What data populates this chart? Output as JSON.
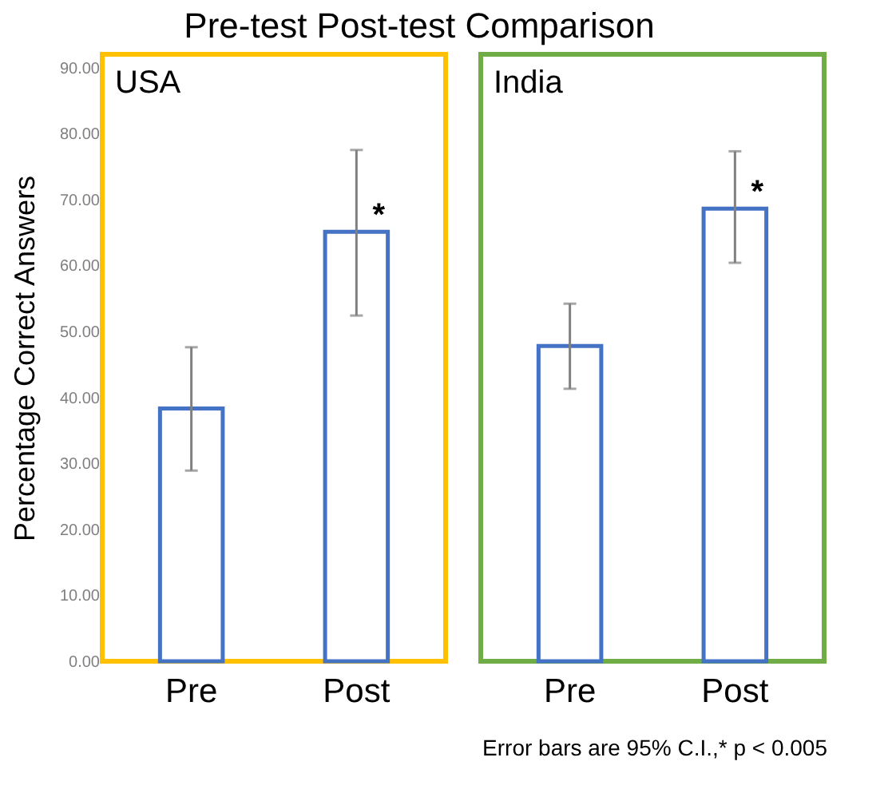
{
  "chart_data": [
    {
      "type": "bar",
      "title": "Pre-test Post-test Comparison",
      "ylabel": "Percentage Correct Answers",
      "categories": [
        "Pre",
        "Post"
      ],
      "series": [
        {
          "color": "#4472c4",
          "values": [
            38.3,
            65.1
          ],
          "errors": [
            [
              28.9,
              47.6
            ],
            [
              52.4,
              77.5
            ]
          ]
        }
      ],
      "ylim": [
        0,
        92
      ],
      "yticks": [
        {
          "value": 0,
          "label": "0.00"
        },
        {
          "value": 10,
          "label": "10.00"
        },
        {
          "value": 20,
          "label": "20.00"
        },
        {
          "value": 30,
          "label": "30.00"
        },
        {
          "value": 40,
          "label": "40.00"
        },
        {
          "value": 50,
          "label": "50.00"
        },
        {
          "value": 60,
          "label": "60.00"
        },
        {
          "value": 70,
          "label": "70.00"
        },
        {
          "value": 80,
          "label": "80.00"
        },
        {
          "value": 90,
          "label": "90.00"
        }
      ],
      "annotations": [
        "USA",
        {
          "text": "*",
          "x": "Post",
          "y": 65.1
        }
      ],
      "grid": false
    },
    {
      "type": "bar",
      "categories": [
        "Pre",
        "Post"
      ],
      "series": [
        {
          "color": "#4472c4",
          "values": [
            47.8,
            68.6
          ],
          "errors": [
            [
              41.3,
              54.2
            ],
            [
              60.4,
              77.3
            ]
          ]
        }
      ],
      "ylim": [
        0,
        92
      ],
      "tick_labels": "x",
      "annotations": [
        "India",
        {
          "text": "*",
          "x": "Post",
          "y": 68.6
        },
        "Error bars are 95% C.I.,* p < 0.005"
      ],
      "grid": false
    }
  ]
}
